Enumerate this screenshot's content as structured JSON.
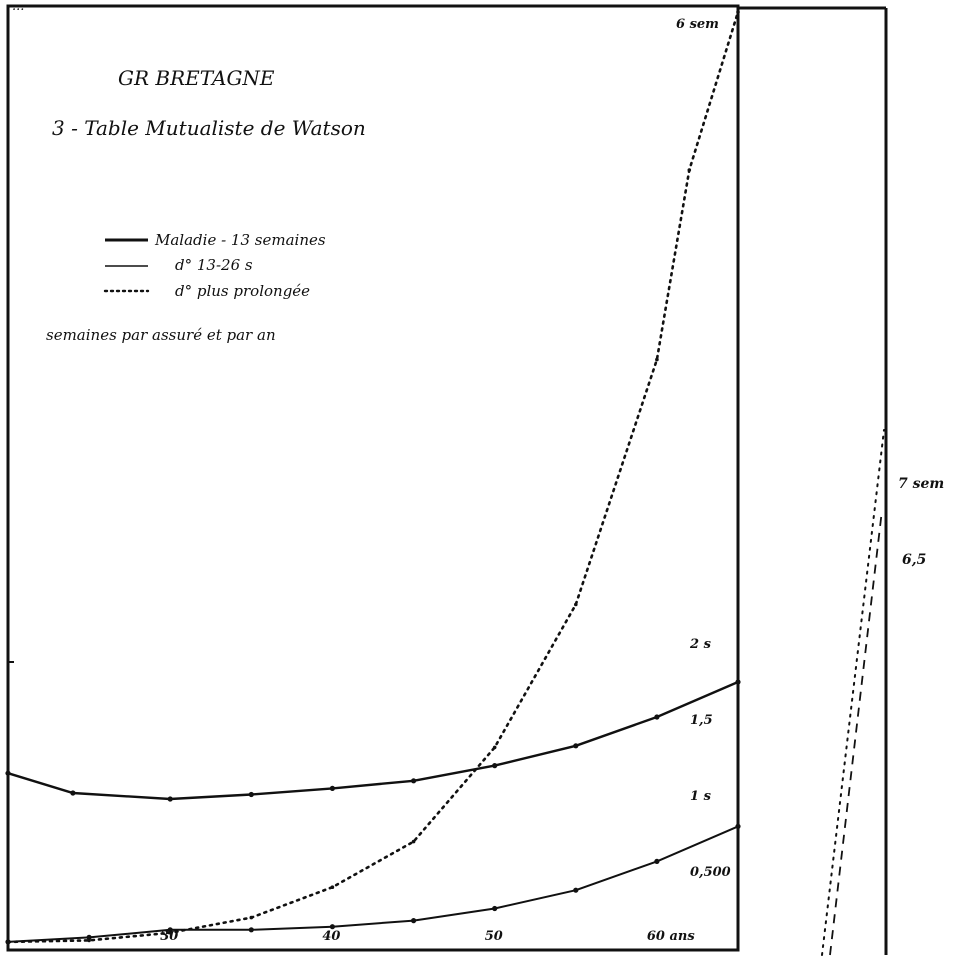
{
  "page_header": "...",
  "chart_data": {
    "type": "line",
    "title": "GR BRETAGNE",
    "subtitle": "3 - Table Mutualiste de Watson",
    "ylabel": "semaines par assuré et par an",
    "x_unit_label": "ans",
    "x_ticks": [
      "30",
      "40",
      "50",
      "60 ans"
    ],
    "x_range": [
      20,
      65
    ],
    "y_range": [
      0,
      6
    ],
    "y_tick_labels": [
      "6 sem",
      "2 s",
      "1,5",
      "1 s",
      "0,500"
    ],
    "right_panel_tick_labels": [
      "7 sem",
      "6,5"
    ],
    "series": [
      {
        "name": "Maladie - 13 semaines",
        "style": "solid",
        "x": [
          20,
          24,
          30,
          35,
          40,
          45,
          50,
          55,
          60,
          65
        ],
        "y": [
          1.15,
          1.02,
          0.98,
          1.01,
          1.05,
          1.1,
          1.2,
          1.33,
          1.52,
          1.75
        ]
      },
      {
        "name": "d° 13-26 s",
        "style": "solid",
        "x": [
          20,
          25,
          30,
          35,
          40,
          45,
          50,
          55,
          60,
          65
        ],
        "y": [
          0.04,
          0.07,
          0.12,
          0.12,
          0.14,
          0.18,
          0.26,
          0.38,
          0.57,
          0.8
        ]
      },
      {
        "name": "d° plus prolongée",
        "style": "dotted",
        "x": [
          20,
          25,
          30,
          35,
          40,
          45,
          50,
          55,
          60,
          62,
          65
        ],
        "y": [
          0.04,
          0.05,
          0.1,
          0.2,
          0.4,
          0.7,
          1.32,
          2.25,
          3.8,
          5.0,
          6.0
        ]
      }
    ]
  }
}
